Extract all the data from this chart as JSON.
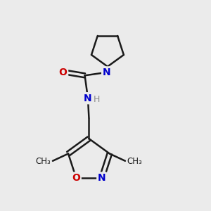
{
  "background_color": "#ebebeb",
  "bond_color": "#1a1a1a",
  "nitrogen_color": "#0000cc",
  "oxygen_color": "#cc0000",
  "gray_color": "#888888",
  "figsize": [
    3.0,
    3.0
  ],
  "dpi": 100,
  "xlim": [
    0,
    10
  ],
  "ylim": [
    0,
    10
  ]
}
